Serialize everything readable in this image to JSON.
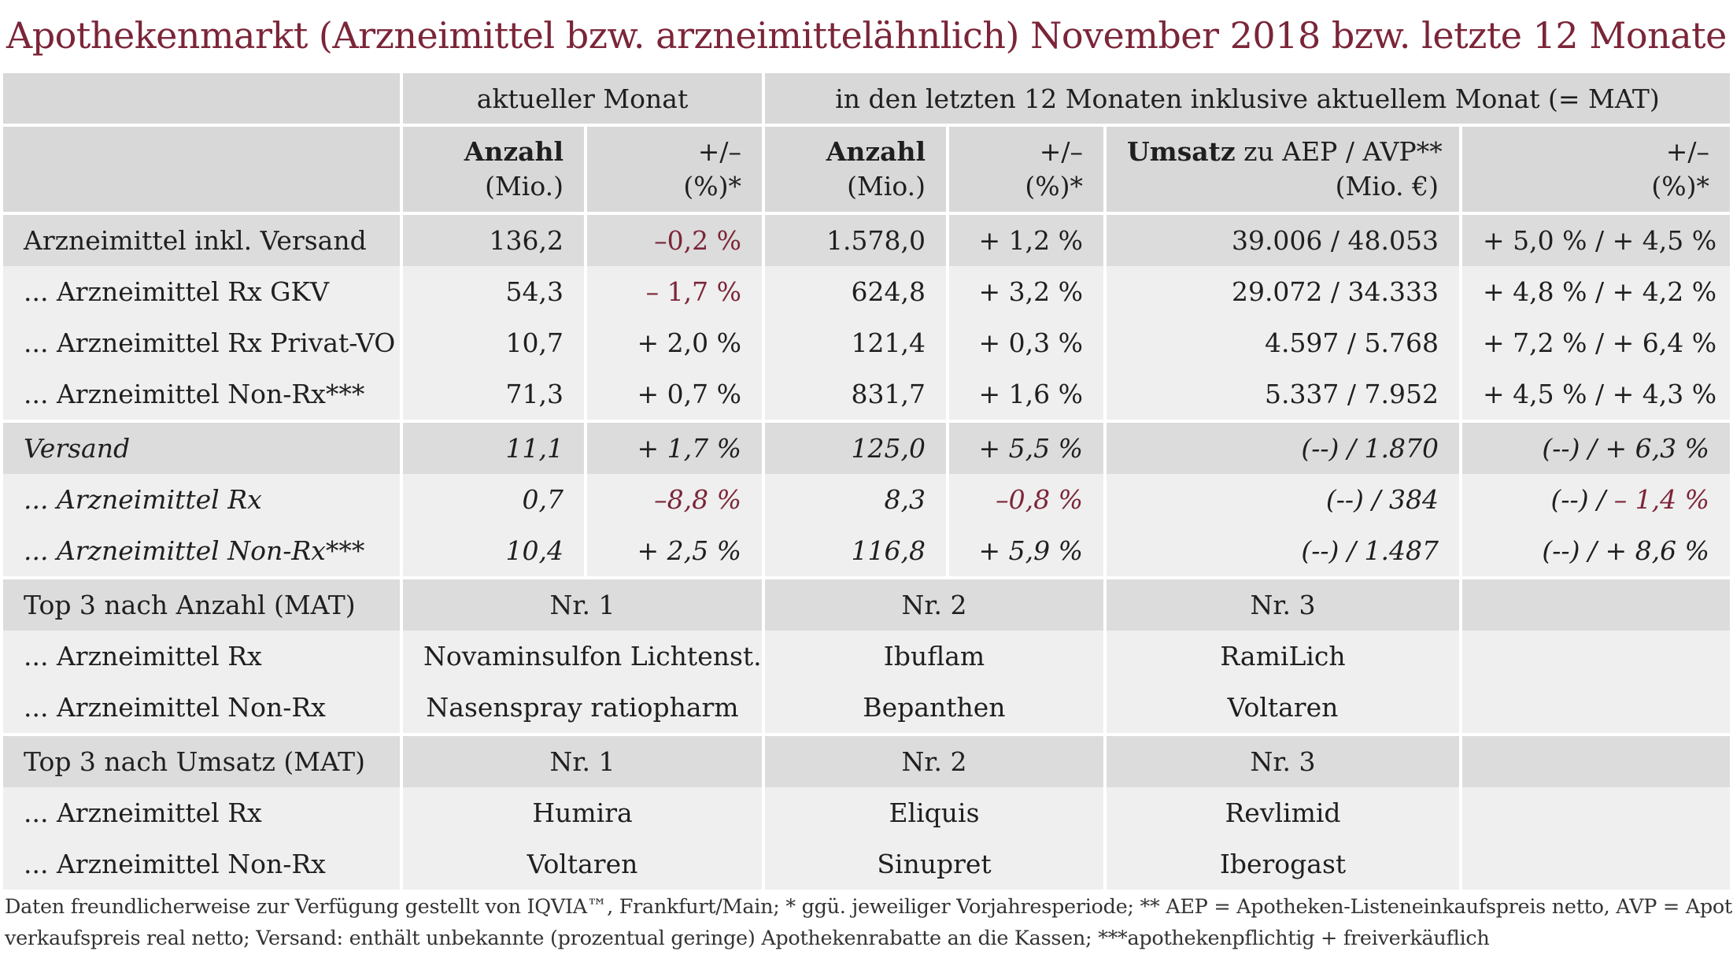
{
  "title": "Apothekenmarkt (Arzneimittel bzw. arzneimittelähnlich) November 2018 bzw. letzte 12 Monate",
  "header": {
    "group_month": "aktueller Monat",
    "group_mat": "in den letzten 12 Monaten inklusive aktuellem Monat (= MAT)",
    "count_label": "Anzahl",
    "count_unit": "(Mio.)",
    "change_label": "+/–",
    "change_unit": "(%)*",
    "revenue_label": "Umsatz",
    "revenue_label_rest": " zu AEP / AVP**",
    "revenue_unit": "(Mio. €)"
  },
  "rows": [
    {
      "label": "Arzneimittel inkl. Versand",
      "month_count": "136,2",
      "month_change": "–0,2 %",
      "month_change_neg": true,
      "mat_count": "1.578,0",
      "mat_change": "+ 1,2 %",
      "mat_change_neg": false,
      "revenue": "39.006 / 48.053",
      "rev_change_a": "+ 5,0 % / ",
      "rev_change_b": "+ 4,5 %",
      "rev_b_neg": false,
      "style": "lead"
    },
    {
      "label": "... Arzneimittel Rx GKV",
      "month_count": "54,3",
      "month_change": "– 1,7 %",
      "month_change_neg": true,
      "mat_count": "624,8",
      "mat_change": "+ 3,2 %",
      "mat_change_neg": false,
      "revenue": "29.072 / 34.333",
      "rev_change_a": "+ 4,8 % / ",
      "rev_change_b": "+ 4,2 %",
      "rev_b_neg": false,
      "style": "light"
    },
    {
      "label": "... Arzneimittel Rx Privat-VO",
      "month_count": "10,7",
      "month_change": "+ 2,0 %",
      "month_change_neg": false,
      "mat_count": "121,4",
      "mat_change": "+ 0,3 %",
      "mat_change_neg": false,
      "revenue": "4.597 / 5.768",
      "rev_change_a": "+ 7,2 % / ",
      "rev_change_b": "+ 6,4 %",
      "rev_b_neg": false,
      "style": "light"
    },
    {
      "label": "... Arzneimittel Non-Rx***",
      "month_count": "71,3",
      "month_change": "+ 0,7 %",
      "month_change_neg": false,
      "mat_count": "831,7",
      "mat_change": "+ 1,6 %",
      "mat_change_neg": false,
      "revenue": "5.337 / 7.952",
      "rev_change_a": "+ 4,5 % / ",
      "rev_change_b": "+ 4,3 %",
      "rev_b_neg": false,
      "style": "light"
    },
    {
      "label": "Versand",
      "month_count": "11,1",
      "month_change": "+ 1,7 %",
      "month_change_neg": false,
      "mat_count": "125,0",
      "mat_change": "+ 5,5 %",
      "mat_change_neg": false,
      "revenue": "(--) / 1.870",
      "rev_change_a": "(--) / ",
      "rev_change_b": "+ 6,3 %",
      "rev_b_neg": false,
      "style": "lead ital"
    },
    {
      "label": "... Arzneimittel Rx",
      "month_count": "0,7",
      "month_change": "–8,8 %",
      "month_change_neg": true,
      "mat_count": "8,3",
      "mat_change": "–0,8 %",
      "mat_change_neg": true,
      "revenue": "(--) / 384",
      "rev_change_a": "(--) / ",
      "rev_change_b": "– 1,4 %",
      "rev_b_neg": true,
      "style": "light ital"
    },
    {
      "label": "... Arzneimittel Non-Rx***",
      "month_count": "10,4",
      "month_change": "+ 2,5 %",
      "month_change_neg": false,
      "mat_count": "116,8",
      "mat_change": "+ 5,9 %",
      "mat_change_neg": false,
      "revenue": "(--) / 1.487",
      "rev_change_a": "(--) / ",
      "rev_change_b": "+ 8,6 %",
      "rev_b_neg": false,
      "style": "light ital"
    }
  ],
  "top3": [
    {
      "heading": "Top 3 nach Anzahl (MAT)",
      "ranks": [
        "Nr. 1",
        "Nr. 2",
        "Nr. 3"
      ],
      "items": [
        {
          "label": "... Arzneimittel Rx",
          "values": [
            "Novaminsulfon Lichtenst.",
            "Ibuflam",
            "RamiLich"
          ]
        },
        {
          "label": "... Arzneimittel Non-Rx",
          "values": [
            "Nasenspray ratiopharm",
            "Bepanthen",
            "Voltaren"
          ]
        }
      ]
    },
    {
      "heading": "Top 3 nach Umsatz (MAT)",
      "ranks": [
        "Nr. 1",
        "Nr. 2",
        "Nr. 3"
      ],
      "items": [
        {
          "label": "... Arzneimittel Rx",
          "values": [
            "Humira",
            "Eliquis",
            "Revlimid"
          ]
        },
        {
          "label": "... Arzneimittel Non-Rx",
          "values": [
            "Voltaren",
            "Sinupret",
            "Iberogast"
          ]
        }
      ]
    }
  ],
  "footnote": {
    "line1": "Daten freundlicherweise zur Verfügung gestellt von IQVIA™, Frankfurt/Main;   * ggü. jeweiliger Vorjahresperiode;   ** AEP = Apotheken-Listeneinkaufspreis netto, AVP = Apotheken-",
    "line2": "verkaufspreis real netto; Versand: enthält unbekannte (prozentual geringe) Apothekenrabatte an die Kassen;  ***apothekenpflichtig + freiverkäuflich"
  },
  "colors": {
    "accent": "#7b2538",
    "header_bg": "#d8d8d8",
    "row_bg": "#efefef"
  }
}
